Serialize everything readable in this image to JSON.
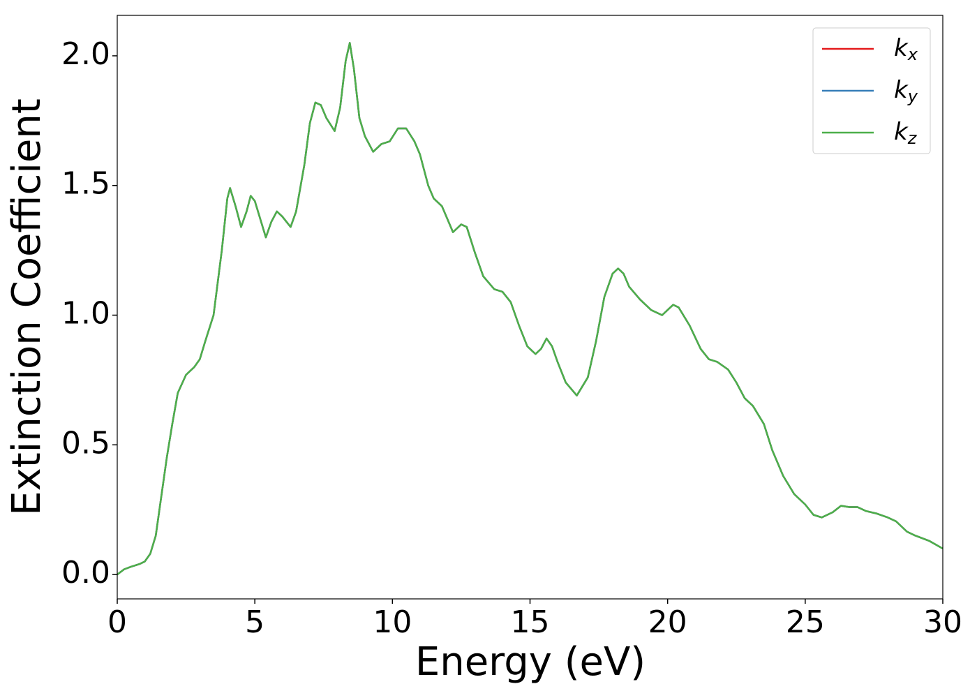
{
  "chart_data": {
    "type": "line",
    "xlabel": "Energy (eV)",
    "ylabel": "Extinction Coefficient",
    "x": [
      0,
      0.25,
      0.5,
      0.8,
      1.0,
      1.2,
      1.4,
      1.6,
      1.8,
      2.0,
      2.2,
      2.5,
      2.8,
      3.0,
      3.2,
      3.5,
      3.8,
      4.0,
      4.1,
      4.3,
      4.5,
      4.7,
      4.85,
      5.0,
      5.2,
      5.4,
      5.6,
      5.8,
      6.0,
      6.3,
      6.5,
      6.8,
      7.0,
      7.2,
      7.4,
      7.6,
      7.9,
      8.1,
      8.3,
      8.45,
      8.6,
      8.8,
      9.0,
      9.3,
      9.6,
      9.9,
      10.2,
      10.5,
      10.8,
      11.0,
      11.3,
      11.5,
      11.8,
      12.0,
      12.2,
      12.5,
      12.7,
      13.0,
      13.3,
      13.7,
      14.0,
      14.3,
      14.6,
      14.9,
      15.2,
      15.4,
      15.6,
      15.8,
      16.0,
      16.3,
      16.7,
      17.1,
      17.4,
      17.7,
      18.0,
      18.2,
      18.4,
      18.6,
      19.0,
      19.4,
      19.8,
      20.2,
      20.4,
      20.8,
      21.2,
      21.5,
      21.8,
      22.2,
      22.5,
      22.8,
      23.1,
      23.5,
      23.8,
      24.2,
      24.6,
      25.0,
      25.3,
      25.6,
      26.0,
      26.3,
      26.6,
      26.9,
      27.2,
      27.6,
      28.0,
      28.3,
      28.7,
      29.0,
      29.5,
      30.0
    ],
    "series": [
      {
        "name": "kx",
        "color": "#e41a1c",
        "values": [
          0.0,
          0.02,
          0.03,
          0.04,
          0.05,
          0.08,
          0.15,
          0.3,
          0.45,
          0.58,
          0.7,
          0.77,
          0.8,
          0.83,
          0.9,
          1.0,
          1.25,
          1.45,
          1.49,
          1.42,
          1.34,
          1.4,
          1.46,
          1.44,
          1.37,
          1.3,
          1.36,
          1.4,
          1.38,
          1.34,
          1.4,
          1.58,
          1.74,
          1.82,
          1.81,
          1.76,
          1.71,
          1.8,
          1.98,
          2.05,
          1.95,
          1.76,
          1.69,
          1.63,
          1.66,
          1.67,
          1.72,
          1.72,
          1.67,
          1.62,
          1.5,
          1.45,
          1.42,
          1.37,
          1.32,
          1.35,
          1.34,
          1.24,
          1.15,
          1.1,
          1.09,
          1.05,
          0.96,
          0.88,
          0.85,
          0.87,
          0.91,
          0.88,
          0.82,
          0.74,
          0.69,
          0.76,
          0.9,
          1.07,
          1.16,
          1.18,
          1.16,
          1.11,
          1.06,
          1.02,
          1.0,
          1.04,
          1.03,
          0.96,
          0.87,
          0.83,
          0.82,
          0.79,
          0.74,
          0.68,
          0.65,
          0.58,
          0.48,
          0.38,
          0.31,
          0.27,
          0.23,
          0.22,
          0.24,
          0.265,
          0.26,
          0.26,
          0.245,
          0.235,
          0.22,
          0.205,
          0.165,
          0.15,
          0.13,
          0.1
        ]
      },
      {
        "name": "ky",
        "color": "#377eb8",
        "values": [
          0.0,
          0.02,
          0.03,
          0.04,
          0.05,
          0.08,
          0.15,
          0.3,
          0.45,
          0.58,
          0.7,
          0.77,
          0.8,
          0.83,
          0.9,
          1.0,
          1.25,
          1.45,
          1.49,
          1.42,
          1.34,
          1.4,
          1.46,
          1.44,
          1.37,
          1.3,
          1.36,
          1.4,
          1.38,
          1.34,
          1.4,
          1.58,
          1.74,
          1.82,
          1.81,
          1.76,
          1.71,
          1.8,
          1.98,
          2.05,
          1.95,
          1.76,
          1.69,
          1.63,
          1.66,
          1.67,
          1.72,
          1.72,
          1.67,
          1.62,
          1.5,
          1.45,
          1.42,
          1.37,
          1.32,
          1.35,
          1.34,
          1.24,
          1.15,
          1.1,
          1.09,
          1.05,
          0.96,
          0.88,
          0.85,
          0.87,
          0.91,
          0.88,
          0.82,
          0.74,
          0.69,
          0.76,
          0.9,
          1.07,
          1.16,
          1.18,
          1.16,
          1.11,
          1.06,
          1.02,
          1.0,
          1.04,
          1.03,
          0.96,
          0.87,
          0.83,
          0.82,
          0.79,
          0.74,
          0.68,
          0.65,
          0.58,
          0.48,
          0.38,
          0.31,
          0.27,
          0.23,
          0.22,
          0.24,
          0.265,
          0.26,
          0.26,
          0.245,
          0.235,
          0.22,
          0.205,
          0.165,
          0.15,
          0.13,
          0.1
        ]
      },
      {
        "name": "kz",
        "color": "#4daf4a",
        "values": [
          0.0,
          0.02,
          0.03,
          0.04,
          0.05,
          0.08,
          0.15,
          0.3,
          0.45,
          0.58,
          0.7,
          0.77,
          0.8,
          0.83,
          0.9,
          1.0,
          1.25,
          1.45,
          1.49,
          1.42,
          1.34,
          1.4,
          1.46,
          1.44,
          1.37,
          1.3,
          1.36,
          1.4,
          1.38,
          1.34,
          1.4,
          1.58,
          1.74,
          1.82,
          1.81,
          1.76,
          1.71,
          1.8,
          1.98,
          2.05,
          1.95,
          1.76,
          1.69,
          1.63,
          1.66,
          1.67,
          1.72,
          1.72,
          1.67,
          1.62,
          1.5,
          1.45,
          1.42,
          1.37,
          1.32,
          1.35,
          1.34,
          1.24,
          1.15,
          1.1,
          1.09,
          1.05,
          0.96,
          0.88,
          0.85,
          0.87,
          0.91,
          0.88,
          0.82,
          0.74,
          0.69,
          0.76,
          0.9,
          1.07,
          1.16,
          1.18,
          1.16,
          1.11,
          1.06,
          1.02,
          1.0,
          1.04,
          1.03,
          0.96,
          0.87,
          0.83,
          0.82,
          0.79,
          0.74,
          0.68,
          0.65,
          0.58,
          0.48,
          0.38,
          0.31,
          0.27,
          0.23,
          0.22,
          0.24,
          0.265,
          0.26,
          0.26,
          0.245,
          0.235,
          0.22,
          0.205,
          0.165,
          0.15,
          0.13,
          0.1
        ]
      }
    ],
    "xlim": [
      0,
      30
    ],
    "xticks": [
      0,
      5,
      10,
      15,
      20,
      25,
      30
    ],
    "ylim": [
      -0.094,
      2.156
    ],
    "yticks": [
      {
        "value": 0,
        "label": "0.0"
      },
      {
        "value": 0.5,
        "label": "0.5"
      },
      {
        "value": 1,
        "label": "1.0"
      },
      {
        "value": 1.5,
        "label": "1.5"
      },
      {
        "value": 2,
        "label": "2.0"
      }
    ],
    "grid": false,
    "legend": "upper right"
  }
}
